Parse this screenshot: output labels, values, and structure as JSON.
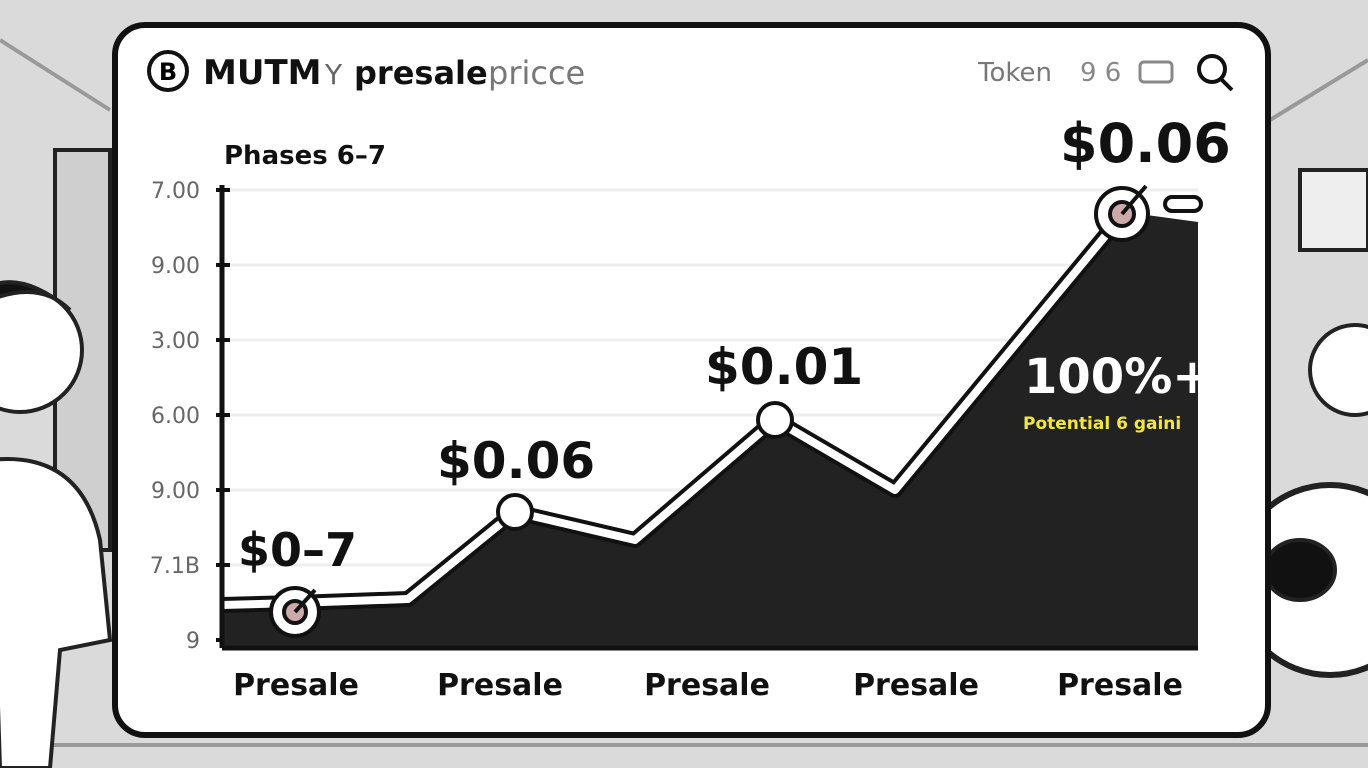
{
  "header": {
    "logo": "B",
    "title": [
      "MUTM",
      "Y",
      "presale",
      "pricce"
    ],
    "right": [
      "Token",
      "9 6"
    ]
  },
  "chart": {
    "subtitle": "Phases 6–7",
    "y_labels": [
      "7.00",
      "9.00",
      "3.00",
      "6.00",
      "9.00",
      "7.1B",
      "9"
    ],
    "point_labels": [
      "$0–7",
      "$0.06",
      "$0.01",
      "$0.06"
    ],
    "callout": {
      "headline": "100%+",
      "caption": "Potential 6 gaini"
    },
    "x_labels": [
      "Presale",
      "Presale",
      "Presale",
      "Presale",
      "Presale"
    ]
  }
}
